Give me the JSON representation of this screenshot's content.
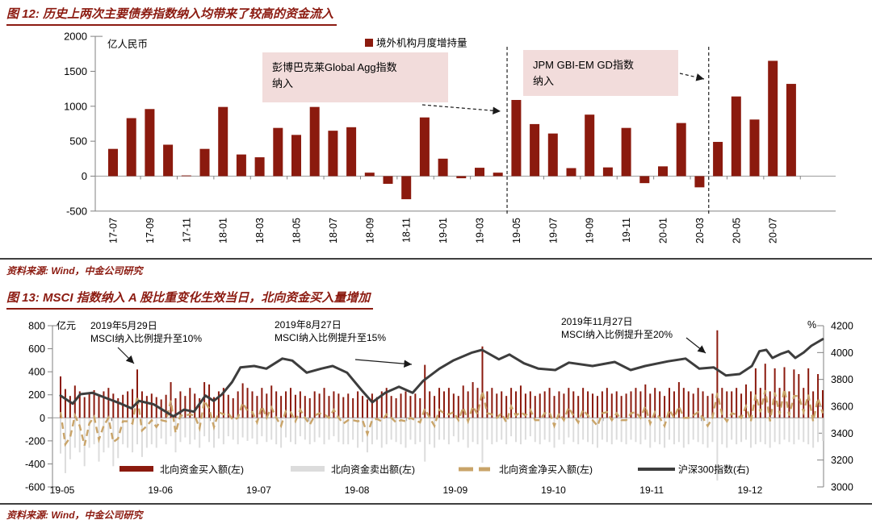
{
  "colors": {
    "accent": "#8B1A0E",
    "title": "#8C1B11",
    "annotation_bg": "#F2DCDB",
    "sell_gray": "#DCDCDC",
    "net_tan": "#C9A469",
    "index_line": "#3D3D3D",
    "axis": "#808080",
    "zero_line": "#9C9C9C",
    "rule": "#3F3F3F",
    "arrow": "#1A1A1A"
  },
  "figure12": {
    "title": "图 12: 历史上两次主要债券指数纳入均带来了较高的资金流入",
    "source": "资料来源: Wind，中金公司研究",
    "legend_label": "境外机构月度增持量",
    "unit_label": "亿人民币",
    "annotations": [
      {
        "lines": [
          "彭博巴克莱Global Agg指数",
          "纳入"
        ]
      },
      {
        "lines": [
          "JPM GBI-EM GD指数",
          "纳入"
        ]
      }
    ],
    "chart_data": {
      "type": "bar",
      "title": "境外机构月度增持量",
      "ylabel": "亿人民币",
      "ylim": [
        -500,
        2000
      ],
      "yticks": [
        2000,
        1500,
        1000,
        500,
        0,
        -500
      ],
      "categories": [
        "17-07",
        "17-08",
        "17-09",
        "17-10",
        "17-11",
        "17-12",
        "18-01",
        "18-02",
        "18-03",
        "18-04",
        "18-05",
        "18-06",
        "18-07",
        "18-08",
        "18-09",
        "18-10",
        "18-11",
        "18-12",
        "19-01",
        "19-02",
        "19-03",
        "19-04",
        "19-05",
        "19-06",
        "19-07",
        "19-08",
        "19-09",
        "19-10",
        "19-11",
        "19-12",
        "20-01",
        "20-02",
        "20-03",
        "20-04",
        "20-05",
        "20-06",
        "20-07",
        "20-08"
      ],
      "values": [
        390,
        830,
        960,
        450,
        10,
        390,
        990,
        310,
        270,
        690,
        590,
        990,
        650,
        700,
        50,
        -110,
        -330,
        840,
        250,
        -30,
        120,
        50,
        1090,
        745,
        610,
        115,
        880,
        125,
        690,
        -100,
        140,
        760,
        -160,
        490,
        1140,
        810,
        1650,
        1320
      ],
      "xtick_labels": [
        "17-07",
        "17-09",
        "17-11",
        "18-01",
        "18-03",
        "18-05",
        "18-07",
        "18-09",
        "18-11",
        "19-01",
        "19-03",
        "19-05",
        "19-07",
        "19-09",
        "19-11",
        "20-01",
        "20-03",
        "20-05",
        "20-07"
      ],
      "event_lines": [
        {
          "label": "彭博巴克莱Global Agg指数纳入",
          "month_index": 21.5
        },
        {
          "label": "JPM GBI-EM GD指数纳入",
          "month_index": 32.5
        }
      ],
      "grid": false,
      "legend_position": "top-center"
    }
  },
  "figure13": {
    "title": "图 13: MSCI 指数纳入 A 股比重变化生效当日，北向资金买入量增加",
    "source": "资料来源: Wind，中金公司研究",
    "unit_left": "亿元",
    "unit_right": "%",
    "annotations": [
      {
        "lines": [
          "2019年5月29日",
          "MSCI纳入比例提升至10%"
        ]
      },
      {
        "lines": [
          "2019年8月27日",
          "MSCI纳入比例提升至15%"
        ]
      },
      {
        "lines": [
          "2019年11月27日",
          "MSCI纳入比例提升至20%"
        ]
      }
    ],
    "legend": [
      {
        "label": "北向资金买入额(左)",
        "style": "bar",
        "color_key": "accent"
      },
      {
        "label": "北向资金卖出额(左)",
        "style": "bar",
        "color_key": "sell_gray"
      },
      {
        "label": "北向资金净买入额(左)",
        "style": "dashed",
        "color_key": "net_tan"
      },
      {
        "label": "沪深300指数(右)",
        "style": "line",
        "color_key": "index_line"
      }
    ],
    "chart_data": {
      "type": "combo",
      "left_axis": {
        "label": "亿元",
        "ylim": [
          -600,
          800
        ],
        "yticks": [
          800,
          600,
          400,
          200,
          0,
          -200,
          -400,
          -600
        ]
      },
      "right_axis": {
        "label": "%",
        "ylim": [
          3000,
          4200
        ],
        "yticks": [
          4200,
          4000,
          3800,
          3600,
          3400,
          3200,
          3000
        ]
      },
      "xtick_labels": [
        "19-05",
        "19-06",
        "19-07",
        "19-08",
        "19-09",
        "19-10",
        "19-11",
        "19-12"
      ],
      "series_buy": [
        360,
        250,
        190,
        280,
        230,
        180,
        210,
        240,
        190,
        230,
        260,
        210,
        170,
        200,
        230,
        250,
        420,
        230,
        190,
        210,
        180,
        160,
        200,
        310,
        170,
        230,
        190,
        260,
        210,
        170,
        310,
        290,
        180,
        230,
        260,
        200,
        170,
        230,
        300,
        260,
        230,
        190,
        260,
        210,
        280,
        230,
        190,
        230,
        260,
        200,
        230,
        190,
        170,
        230,
        210,
        260,
        190,
        230,
        210,
        180,
        210,
        170,
        230,
        190,
        160,
        210,
        180,
        230,
        260,
        190,
        170,
        210,
        230,
        190,
        210,
        170,
        460,
        230,
        190,
        260,
        230,
        260,
        210,
        190,
        280,
        230,
        310,
        260,
        620,
        230,
        260,
        210,
        230,
        190,
        260,
        230,
        280,
        210,
        230,
        190,
        210,
        230,
        260,
        190,
        230,
        210,
        260,
        230,
        190,
        260,
        230,
        210,
        190,
        230,
        260,
        210,
        230,
        190,
        210,
        230,
        260,
        230,
        290,
        210,
        260,
        230,
        190,
        260,
        230,
        310,
        260,
        230,
        210,
        260,
        230,
        190,
        210,
        760,
        260,
        230,
        230,
        260,
        210,
        290,
        230,
        430,
        260,
        470,
        230,
        430,
        260,
        440,
        230,
        420,
        380,
        260,
        430,
        230,
        380,
        240
      ],
      "series_sell": [
        -310,
        -480,
        -360,
        -260,
        -300,
        -420,
        -260,
        -230,
        -380,
        -300,
        -260,
        -420,
        -350,
        -230,
        -260,
        -300,
        -230,
        -340,
        -260,
        -230,
        -260,
        -180,
        -230,
        -160,
        -300,
        -210,
        -170,
        -230,
        -190,
        -260,
        -160,
        -210,
        -260,
        -180,
        -230,
        -160,
        -190,
        -230,
        -170,
        -200,
        -180,
        -230,
        -160,
        -210,
        -190,
        -230,
        -260,
        -170,
        -210,
        -230,
        -160,
        -190,
        -230,
        -210,
        -170,
        -230,
        -190,
        -160,
        -210,
        -230,
        -230,
        -190,
        -260,
        -210,
        -300,
        -230,
        -190,
        -260,
        -230,
        -190,
        -210,
        -230,
        -260,
        -190,
        -230,
        -210,
        -380,
        -230,
        -260,
        -190,
        -190,
        -230,
        -160,
        -210,
        -190,
        -260,
        -210,
        -230,
        -390,
        -190,
        -230,
        -210,
        -190,
        -230,
        -160,
        -210,
        -230,
        -190,
        -160,
        -210,
        -230,
        -190,
        -210,
        -260,
        -190,
        -230,
        -170,
        -210,
        -230,
        -190,
        -210,
        -230,
        -260,
        -190,
        -210,
        -230,
        -190,
        -210,
        -230,
        -190,
        -210,
        -230,
        -190,
        -260,
        -210,
        -230,
        -260,
        -190,
        -230,
        -210,
        -260,
        -230,
        -190,
        -210,
        -230,
        -260,
        -210,
        -545,
        -230,
        -260,
        -190,
        -230,
        -210,
        -190,
        -260,
        -230,
        -210,
        -230,
        -260,
        -210,
        -230,
        -190,
        -210,
        -230,
        -190,
        -210,
        -230,
        -260,
        -210,
        -200
      ],
      "net_rule": "net = buy + sell (drawn as dashed line)",
      "csi300_points": [
        [
          0,
          3680
        ],
        [
          0.016,
          3620
        ],
        [
          0.026,
          3690
        ],
        [
          0.042,
          3700
        ],
        [
          0.079,
          3620
        ],
        [
          0.093,
          3585
        ],
        [
          0.103,
          3640
        ],
        [
          0.122,
          3615
        ],
        [
          0.138,
          3560
        ],
        [
          0.148,
          3525
        ],
        [
          0.162,
          3575
        ],
        [
          0.175,
          3560
        ],
        [
          0.19,
          3680
        ],
        [
          0.201,
          3640
        ],
        [
          0.212,
          3690
        ],
        [
          0.225,
          3780
        ],
        [
          0.236,
          3890
        ],
        [
          0.254,
          3900
        ],
        [
          0.27,
          3880
        ],
        [
          0.291,
          3955
        ],
        [
          0.304,
          3940
        ],
        [
          0.323,
          3850
        ],
        [
          0.342,
          3880
        ],
        [
          0.357,
          3900
        ],
        [
          0.376,
          3850
        ],
        [
          0.395,
          3720
        ],
        [
          0.409,
          3630
        ],
        [
          0.426,
          3700
        ],
        [
          0.444,
          3745
        ],
        [
          0.462,
          3700
        ],
        [
          0.476,
          3790
        ],
        [
          0.497,
          3880
        ],
        [
          0.515,
          3940
        ],
        [
          0.54,
          4000
        ],
        [
          0.553,
          4020
        ],
        [
          0.575,
          3950
        ],
        [
          0.589,
          3985
        ],
        [
          0.608,
          3920
        ],
        [
          0.627,
          3880
        ],
        [
          0.649,
          3870
        ],
        [
          0.667,
          3925
        ],
        [
          0.698,
          3900
        ],
        [
          0.727,
          3930
        ],
        [
          0.748,
          3870
        ],
        [
          0.767,
          3900
        ],
        [
          0.797,
          3935
        ],
        [
          0.82,
          3955
        ],
        [
          0.838,
          3880
        ],
        [
          0.857,
          3890
        ],
        [
          0.873,
          3830
        ],
        [
          0.891,
          3840
        ],
        [
          0.907,
          3900
        ],
        [
          0.917,
          4010
        ],
        [
          0.926,
          4020
        ],
        [
          0.934,
          3960
        ],
        [
          0.945,
          3990
        ],
        [
          0.955,
          4010
        ],
        [
          0.964,
          3960
        ],
        [
          0.975,
          4000
        ],
        [
          0.985,
          4050
        ],
        [
          0.994,
          4080
        ],
        [
          1,
          4100
        ]
      ],
      "grid": false,
      "legend_position": "bottom-center"
    }
  }
}
